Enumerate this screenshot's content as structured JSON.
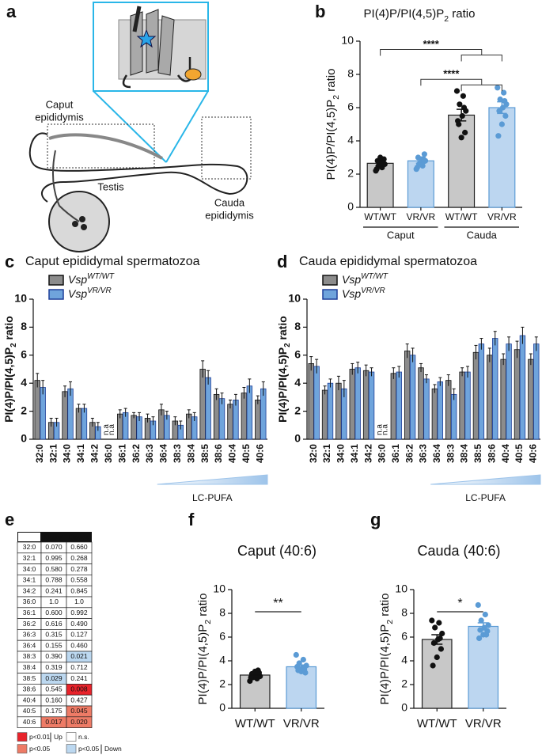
{
  "panel_labels": [
    "a",
    "b",
    "c",
    "d",
    "e",
    "f",
    "g"
  ],
  "diagram": {
    "caput": [
      "Caput",
      "epididymis"
    ],
    "testis": "Testis",
    "cauda": [
      "Cauda",
      "epididymis"
    ]
  },
  "chart_data": [
    {
      "type": "bar",
      "title": {
        "main": "PI(4)P/PI(4,5)P",
        "sub": "2",
        "tail": " ratio"
      },
      "ylabel": {
        "main": "PI(4)P/PI(4,5)P",
        "sub": "2",
        "tail": " ratio"
      },
      "categories": [
        "WT/WT",
        "VR/VR",
        "WT/WT",
        "VR/VR"
      ],
      "groups": [
        "Caput",
        "Cauda"
      ],
      "values": [
        2.65,
        2.8,
        5.55,
        6.0
      ],
      "errors": [
        0.15,
        0.15,
        0.35,
        0.35
      ],
      "colors": [
        "#c8c8c8",
        "#bcd6f0",
        "#c8c8c8",
        "#bcd6f0"
      ],
      "edgecolors": [
        "#222222",
        "#5b9bd5",
        "#222222",
        "#5b9bd5"
      ],
      "point_colors": [
        "#111111",
        "#5b9bd5",
        "#111111",
        "#5b9bd5"
      ],
      "points": [
        [
          2.2,
          2.4,
          2.5,
          2.6,
          2.7,
          2.8,
          2.9,
          3.0,
          2.3,
          2.6
        ],
        [
          2.3,
          2.5,
          2.6,
          2.8,
          2.9,
          3.0,
          3.2,
          2.7,
          2.4,
          2.9
        ],
        [
          7.0,
          6.7,
          6.2,
          5.8,
          5.5,
          5.0,
          4.5,
          4.2,
          5.2,
          6.0
        ],
        [
          7.2,
          6.9,
          6.5,
          6.2,
          6.0,
          5.8,
          5.5,
          5.0,
          4.3,
          6.4
        ]
      ],
      "significance": [
        "****",
        "****"
      ],
      "ylim": [
        0,
        10
      ],
      "yticks": [
        0,
        2,
        4,
        6,
        8,
        10
      ]
    },
    {
      "type": "grouped_bar",
      "title": "Caput epididymal spermatozoa",
      "ylabel": {
        "main": "PI(4)P/PI(4,5)P",
        "sub": "2",
        "tail": " ratio"
      },
      "categories": [
        "32:0",
        "32:1",
        "34:0",
        "34:1",
        "34:2",
        "36:0",
        "36:1",
        "36:2",
        "36:3",
        "36:4",
        "38:3",
        "38:4",
        "38:5",
        "38:6",
        "40:4",
        "40:5",
        "40:6"
      ],
      "series": [
        {
          "name": "Vsp",
          "superscript": "WT/WT",
          "color": "#8c8c8c",
          "edge": "#111111",
          "values": [
            4.2,
            1.2,
            3.4,
            2.2,
            1.2,
            null,
            1.8,
            1.7,
            1.5,
            2.1,
            1.3,
            1.8,
            5.0,
            3.2,
            2.5,
            3.3,
            2.8
          ],
          "errors": [
            0.5,
            0.3,
            0.4,
            0.3,
            0.3,
            null,
            0.3,
            0.2,
            0.3,
            0.4,
            0.3,
            0.3,
            0.6,
            0.4,
            0.3,
            0.4,
            0.3
          ],
          "value_labels": [
            null,
            null,
            null,
            null,
            null,
            "n.a",
            null,
            null,
            null,
            null,
            null,
            null,
            null,
            null,
            null,
            null,
            null
          ]
        },
        {
          "name": "Vsp",
          "superscript": "VR/VR",
          "color": "#6fa4dc",
          "edge": "#1f3f99",
          "values": [
            3.7,
            1.2,
            3.6,
            2.2,
            0.9,
            null,
            1.9,
            1.6,
            1.3,
            1.7,
            1.0,
            1.6,
            4.4,
            2.9,
            2.8,
            3.8,
            3.6
          ],
          "errors": [
            0.5,
            0.3,
            0.5,
            0.3,
            0.3,
            null,
            0.3,
            0.3,
            0.3,
            0.3,
            0.3,
            0.3,
            0.5,
            0.4,
            0.4,
            0.5,
            0.5
          ],
          "value_labels": [
            null,
            null,
            null,
            null,
            null,
            "n.a",
            null,
            null,
            null,
            null,
            null,
            null,
            null,
            null,
            null,
            null,
            null
          ]
        }
      ],
      "annotation": "LC-PUFA",
      "ylim": [
        0,
        10
      ],
      "yticks": [
        0,
        2,
        4,
        6,
        8,
        10
      ]
    },
    {
      "type": "grouped_bar",
      "title": "Cauda epididymal spermatozoa",
      "ylabel": {
        "main": "PI(4)P/PI(4,5)P",
        "sub": "2",
        "tail": " ratio"
      },
      "categories": [
        "32:0",
        "32:1",
        "34:0",
        "34:1",
        "34:2",
        "36:0",
        "36:1",
        "36:2",
        "36:3",
        "36:4",
        "38:3",
        "38:4",
        "38:5",
        "38:6",
        "40:4",
        "40:5",
        "40:6"
      ],
      "series": [
        {
          "name": "Vsp",
          "superscript": "WT/WT",
          "color": "#8c8c8c",
          "edge": "#111111",
          "values": [
            5.4,
            3.5,
            4.0,
            5.0,
            4.9,
            null,
            4.7,
            6.3,
            5.1,
            3.6,
            4.2,
            4.8,
            6.2,
            6.0,
            5.7,
            6.4,
            5.7
          ],
          "errors": [
            0.5,
            0.3,
            0.5,
            0.4,
            0.4,
            null,
            0.4,
            0.5,
            0.3,
            0.3,
            0.4,
            0.3,
            0.5,
            0.5,
            0.4,
            0.6,
            0.4
          ],
          "value_labels": [
            null,
            null,
            null,
            null,
            null,
            "n.a",
            null,
            null,
            null,
            null,
            null,
            null,
            null,
            null,
            null,
            null,
            null
          ]
        },
        {
          "name": "Vsp",
          "superscript": "VR/VR",
          "color": "#6fa4dc",
          "edge": "#1f3f99",
          "values": [
            5.2,
            4.0,
            3.6,
            5.1,
            4.8,
            null,
            4.8,
            6.0,
            4.3,
            4.1,
            3.2,
            4.8,
            6.8,
            7.2,
            6.8,
            7.4,
            6.8
          ],
          "errors": [
            0.5,
            0.3,
            0.6,
            0.4,
            0.3,
            null,
            0.4,
            0.5,
            0.3,
            0.3,
            0.4,
            0.4,
            0.4,
            0.5,
            0.5,
            0.6,
            0.5
          ],
          "value_labels": [
            null,
            null,
            null,
            null,
            null,
            "n.a",
            null,
            null,
            null,
            null,
            null,
            null,
            null,
            null,
            null,
            null,
            null
          ]
        }
      ],
      "annotation": "LC-PUFA",
      "ylim": [
        0,
        10
      ],
      "yticks": [
        0,
        2,
        4,
        6,
        8,
        10
      ]
    },
    {
      "type": "bar",
      "title": "Caput (40:6)",
      "ylabel": {
        "main": "PI(4)P/PI(4,5)P",
        "sub": "2",
        "tail": " ratio"
      },
      "categories": [
        "WT/WT",
        "VR/VR"
      ],
      "values": [
        2.8,
        3.5
      ],
      "errors": [
        0.1,
        0.15
      ],
      "colors": [
        "#c8c8c8",
        "#bcd6f0"
      ],
      "edgecolors": [
        "#222222",
        "#5b9bd5"
      ],
      "point_colors": [
        "#111111",
        "#5b9bd5"
      ],
      "points": [
        [
          2.3,
          2.5,
          2.6,
          2.7,
          2.8,
          2.9,
          3.0,
          3.1,
          2.6,
          3.2
        ],
        [
          4.5,
          4.1,
          3.8,
          3.6,
          3.4,
          3.2,
          3.0,
          3.1,
          3.5,
          3.3
        ]
      ],
      "significance": [
        "**"
      ],
      "ylim": [
        0,
        10
      ],
      "yticks": [
        0,
        2,
        4,
        6,
        8,
        10
      ]
    },
    {
      "type": "bar",
      "title": "Cauda (40:6)",
      "ylabel": {
        "main": "PI(4)P/PI(4,5)P",
        "sub": "2",
        "tail": " ratio"
      },
      "categories": [
        "WT/WT",
        "VR/VR"
      ],
      "values": [
        5.8,
        6.9
      ],
      "errors": [
        0.4,
        0.3
      ],
      "colors": [
        "#c8c8c8",
        "#bcd6f0"
      ],
      "edgecolors": [
        "#222222",
        "#5b9bd5"
      ],
      "point_colors": [
        "#111111",
        "#5b9bd5"
      ],
      "points": [
        [
          7.4,
          7.2,
          6.8,
          6.3,
          5.8,
          5.5,
          5.0,
          4.3,
          3.6,
          5.9
        ],
        [
          8.7,
          7.9,
          7.4,
          7.0,
          6.8,
          6.6,
          6.5,
          6.2,
          5.9,
          6.2
        ]
      ],
      "significance": [
        "*"
      ],
      "ylim": [
        0,
        10
      ],
      "yticks": [
        0,
        2,
        4,
        6,
        8,
        10
      ]
    }
  ],
  "table": {
    "header": [
      "Caput",
      "Cauda"
    ],
    "rows": [
      [
        "32:0",
        "0.070",
        "0.660"
      ],
      [
        "32:1",
        "0.995",
        "0.268"
      ],
      [
        "34:0",
        "0.580",
        "0.278"
      ],
      [
        "34:1",
        "0.788",
        "0.558"
      ],
      [
        "34:2",
        "0.241",
        "0.845"
      ],
      [
        "36:0",
        "1.0",
        "1.0"
      ],
      [
        "36:1",
        "0.600",
        "0.992"
      ],
      [
        "36:2",
        "0.616",
        "0.490"
      ],
      [
        "36:3",
        "0.315",
        "0.127"
      ],
      [
        "36:4",
        "0.155",
        "0.460"
      ],
      [
        "38:3",
        "0.390",
        "0.021"
      ],
      [
        "38:4",
        "0.319",
        "0.712"
      ],
      [
        "38:5",
        "0.029",
        "0.241"
      ],
      [
        "38:6",
        "0.545",
        "0.008"
      ],
      [
        "40:4",
        "0.160",
        "0.427"
      ],
      [
        "40:5",
        "0.175",
        "0.045"
      ],
      [
        "40:6",
        "0.017",
        "0.020"
      ]
    ],
    "fills": [
      [
        null,
        null
      ],
      [
        null,
        null
      ],
      [
        null,
        null
      ],
      [
        null,
        null
      ],
      [
        null,
        null
      ],
      [
        null,
        null
      ],
      [
        null,
        null
      ],
      [
        null,
        null
      ],
      [
        null,
        null
      ],
      [
        null,
        null
      ],
      [
        null,
        "#bcd8f0"
      ],
      [
        null,
        null
      ],
      [
        "#bcd8f0",
        null
      ],
      [
        null,
        "#e8232b"
      ],
      [
        null,
        null
      ],
      [
        null,
        "#ee7b66"
      ],
      [
        "#ee7b66",
        "#ee7b66"
      ]
    ],
    "legend": [
      {
        "label": "p<0.01",
        "color": "#e8232b"
      },
      {
        "label": "p<0.05",
        "color": "#ee7b66"
      },
      {
        "label": "n.s.",
        "color": "#ffffff"
      },
      {
        "label": "p<0.05",
        "color": "#bcd8f0"
      }
    ],
    "legend_groups": [
      "Up",
      "Down"
    ]
  }
}
